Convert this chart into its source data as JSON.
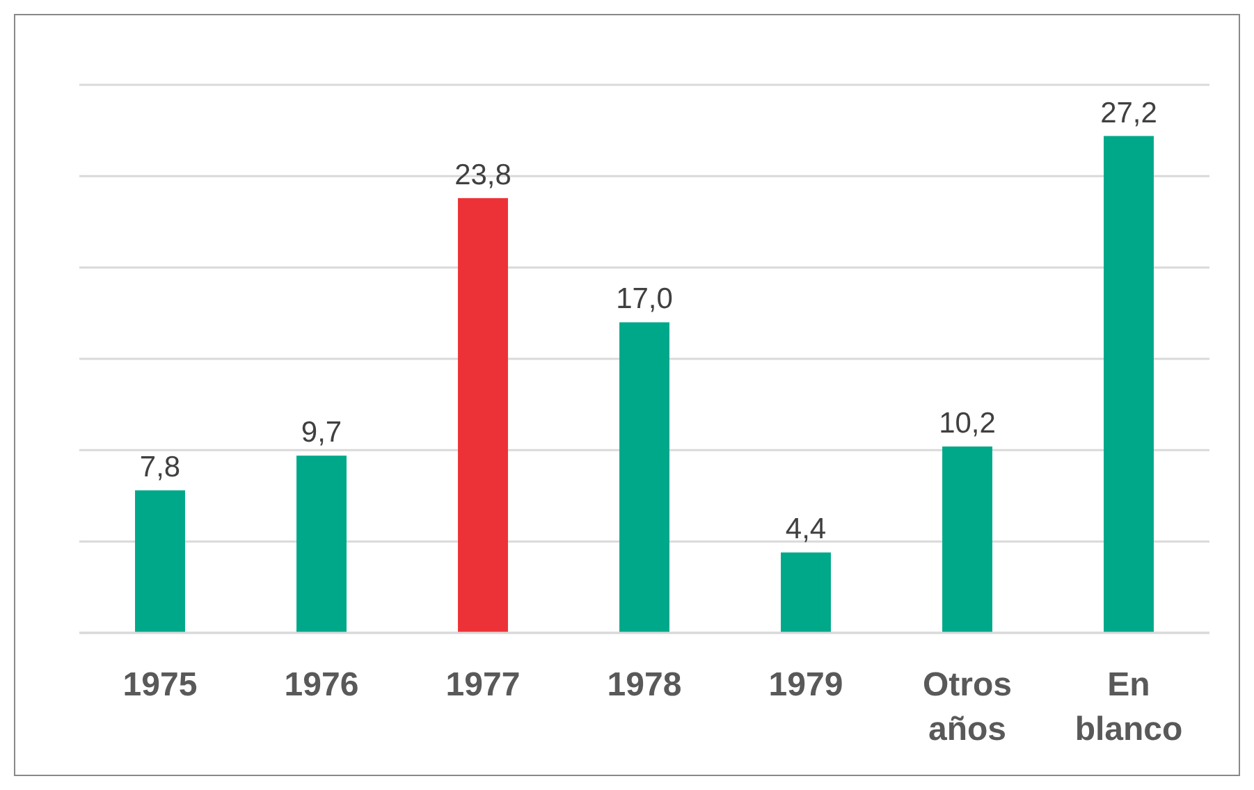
{
  "chart_data": {
    "type": "bar",
    "categories": [
      "1975",
      "1976",
      "1977",
      "1978",
      "1979",
      "Otros años",
      "En blanco"
    ],
    "values": [
      7.8,
      9.7,
      23.8,
      17.0,
      4.4,
      10.2,
      27.2
    ],
    "colors": [
      "#00a88a",
      "#00a88a",
      "#ed3237",
      "#00a88a",
      "#00a88a",
      "#00a88a",
      "#00a88a"
    ],
    "value_labels": [
      "7,8",
      "9,7",
      "23,8",
      "17,0",
      "4,4",
      "10,2",
      "27,2"
    ],
    "ylim": [
      0,
      30
    ],
    "yticks": [
      {
        "value": 0,
        "label": null
      },
      {
        "value": 5,
        "label": null
      },
      {
        "value": 10,
        "label": null
      },
      {
        "value": 15,
        "label": null
      },
      {
        "value": 20,
        "label": null
      },
      {
        "value": 25,
        "label": null
      },
      {
        "value": 30,
        "label": null
      }
    ],
    "grid": "y",
    "tick_labels": "x"
  }
}
